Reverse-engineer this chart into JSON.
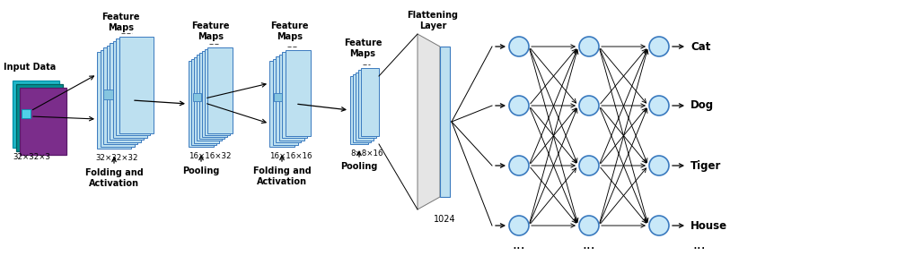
{
  "bg_color": "#ffffff",
  "lblue": "#bde0f0",
  "edge_c": "#3a7abf",
  "node_color": "#c8e8f8",
  "node_edge": "#3a7abf",
  "input_label": "Input Data",
  "input_dim": "32×32×3",
  "label1": "Feature\nMaps",
  "dim1": "32×32×32",
  "label_fold1": "Folding and\nActivation",
  "label_pool1": "Pooling",
  "dim2": "16×16×32",
  "label2": "Feature\nMaps",
  "dim3": "16×16×16",
  "label3": "Feature\nMaps",
  "label_fold2": "Folding and\nActivation",
  "label_pool2": "Pooling",
  "dim4": "8×8×16",
  "label4": "Feature\nMaps",
  "flat_label": "Flattening\nLayer",
  "flat_dim": "1024",
  "outputs": [
    "Cat",
    "Dog",
    "Tiger",
    "House"
  ]
}
